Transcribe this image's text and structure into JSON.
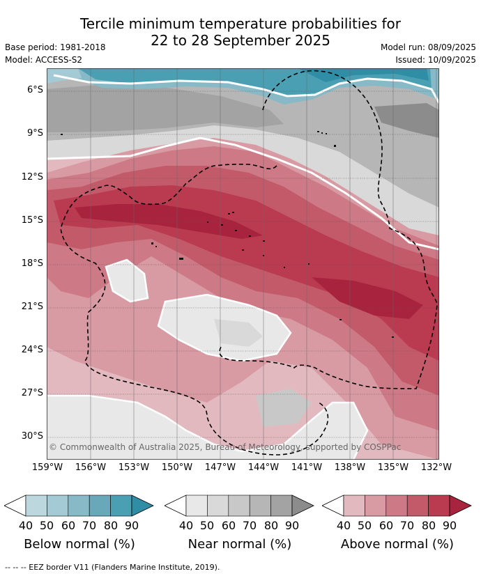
{
  "title_line1": "Tercile minimum temperature probabilities for",
  "title_line2": "22 to 28 September 2025",
  "base_period": "Base period: 1981-2018",
  "model": "Model: ACCESS-S2",
  "model_run": "Model run: 08/09/2025",
  "issued": "Issued: 10/09/2025",
  "lat_labels": [
    "6°S",
    "9°S",
    "12°S",
    "15°S",
    "18°S",
    "21°S",
    "24°S",
    "27°S",
    "30°S"
  ],
  "lon_labels": [
    "159°W",
    "156°W",
    "153°W",
    "150°W",
    "147°W",
    "144°W",
    "141°W",
    "138°W",
    "135°W",
    "132°W"
  ],
  "copyright": "© Commonwealth of Australia 2025, Bureau of Meteorology, supported by COSPPac",
  "colorbars": [
    {
      "title": "Below normal (%)",
      "ticks": [
        "40",
        "50",
        "60",
        "70",
        "80",
        "90"
      ],
      "colors": [
        "#bdd7df",
        "#a4cbd5",
        "#87b9c6",
        "#68a8b8",
        "#4aa0b2",
        "#2f8ea6"
      ]
    },
    {
      "title": "Near normal (%)",
      "ticks": [
        "40",
        "50",
        "60",
        "70",
        "80",
        "90"
      ],
      "colors": [
        "#e8e8e8",
        "#d9d9d9",
        "#c8c8c8",
        "#b6b6b6",
        "#a3a3a3",
        "#8c8c8c"
      ]
    },
    {
      "title": "Above normal (%)",
      "ticks": [
        "40",
        "50",
        "60",
        "70",
        "80",
        "90"
      ],
      "colors": [
        "#e3b9c0",
        "#d89aa3",
        "#cd7a86",
        "#c35a6a",
        "#ba3a50",
        "#a8233d"
      ]
    }
  ],
  "footnote": "--  --  -- EEZ border V11 (Flanders Marine Institute, 2019)."
}
